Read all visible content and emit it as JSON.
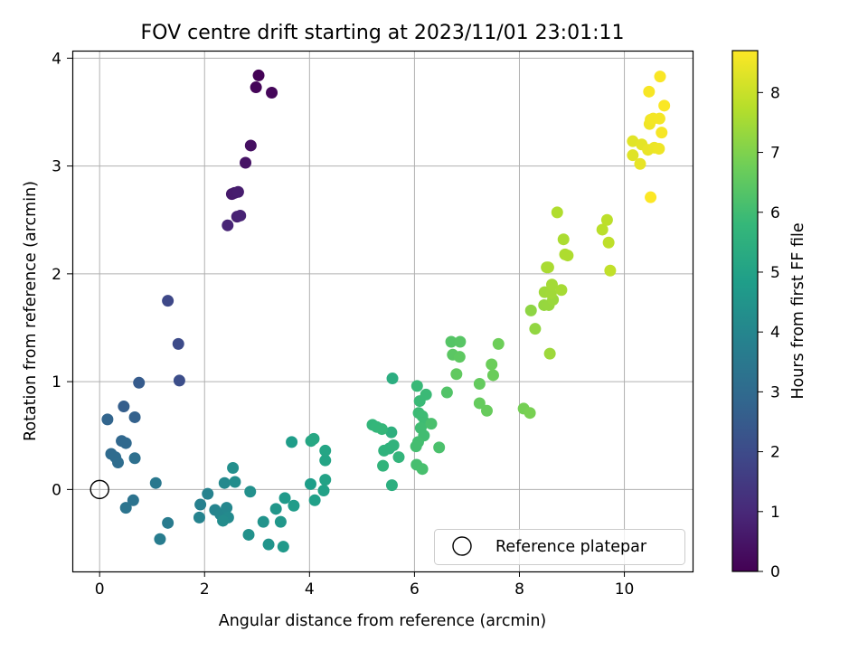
{
  "chart_data": {
    "type": "scatter",
    "title": "FOV centre drift starting at 2023/11/01 23:01:11",
    "xlabel": "Angular distance from reference (arcmin)",
    "ylabel": "Rotation from reference (arcmin)",
    "xlim": [
      -0.52,
      11.3
    ],
    "ylim": [
      -0.76,
      4.07
    ],
    "xticks": [
      "0",
      "2",
      "4",
      "6",
      "8",
      "10"
    ],
    "xtick_values": [
      0,
      2,
      4,
      6,
      8,
      10
    ],
    "yticks": [
      "0",
      "1",
      "2",
      "3",
      "4"
    ],
    "ytick_values": [
      0,
      1,
      2,
      3,
      4
    ],
    "grid": true,
    "legend": {
      "label": "Reference platepar",
      "placement": "lower-right"
    },
    "reference_point": {
      "x": 0,
      "y": 0
    },
    "colorbar": {
      "label": "Hours from first FF file",
      "range": [
        0,
        8.7
      ],
      "ticks": [
        "0",
        "1",
        "2",
        "3",
        "4",
        "5",
        "6",
        "7",
        "8"
      ],
      "tick_values": [
        0,
        1,
        2,
        3,
        4,
        5,
        6,
        7,
        8
      ],
      "colormap": "viridis",
      "stops": [
        "#440154",
        "#482878",
        "#3e4989",
        "#31688e",
        "#26828e",
        "#1f9e89",
        "#35b779",
        "#6ece58",
        "#b5de2b",
        "#fde725"
      ]
    },
    "points": [
      {
        "x": 3.03,
        "y": 3.84,
        "h": 0.05
      },
      {
        "x": 2.98,
        "y": 3.73,
        "h": 0.1
      },
      {
        "x": 3.28,
        "y": 3.68,
        "h": 0.15
      },
      {
        "x": 2.88,
        "y": 3.19,
        "h": 0.35
      },
      {
        "x": 2.78,
        "y": 3.03,
        "h": 0.45
      },
      {
        "x": 2.52,
        "y": 2.74,
        "h": 0.6
      },
      {
        "x": 2.57,
        "y": 2.75,
        "h": 0.65
      },
      {
        "x": 2.64,
        "y": 2.76,
        "h": 0.7
      },
      {
        "x": 2.62,
        "y": 2.53,
        "h": 0.8
      },
      {
        "x": 2.68,
        "y": 2.54,
        "h": 0.85
      },
      {
        "x": 2.44,
        "y": 2.45,
        "h": 0.9
      },
      {
        "x": 1.3,
        "y": 1.75,
        "h": 1.9
      },
      {
        "x": 1.5,
        "y": 1.35,
        "h": 2.0
      },
      {
        "x": 1.52,
        "y": 1.01,
        "h": 2.1
      },
      {
        "x": 0.75,
        "y": 0.99,
        "h": 2.5
      },
      {
        "x": 0.46,
        "y": 0.77,
        "h": 2.6
      },
      {
        "x": 0.67,
        "y": 0.67,
        "h": 2.7
      },
      {
        "x": 0.15,
        "y": 0.65,
        "h": 2.8
      },
      {
        "x": 0.42,
        "y": 0.45,
        "h": 2.9
      },
      {
        "x": 0.5,
        "y": 0.43,
        "h": 2.95
      },
      {
        "x": 0.22,
        "y": 0.33,
        "h": 3.0
      },
      {
        "x": 0.3,
        "y": 0.3,
        "h": 3.05
      },
      {
        "x": 0.35,
        "y": 0.25,
        "h": 3.1
      },
      {
        "x": 0.67,
        "y": 0.29,
        "h": 3.2
      },
      {
        "x": 0.64,
        "y": -0.1,
        "h": 3.3
      },
      {
        "x": 0.5,
        "y": -0.17,
        "h": 3.35
      },
      {
        "x": 1.07,
        "y": 0.06,
        "h": 3.5
      },
      {
        "x": 1.3,
        "y": -0.31,
        "h": 3.6
      },
      {
        "x": 1.15,
        "y": -0.46,
        "h": 3.65
      },
      {
        "x": 1.92,
        "y": -0.14,
        "h": 3.8
      },
      {
        "x": 2.06,
        "y": -0.04,
        "h": 3.85
      },
      {
        "x": 1.9,
        "y": -0.26,
        "h": 3.9
      },
      {
        "x": 2.2,
        "y": -0.19,
        "h": 3.95
      },
      {
        "x": 2.3,
        "y": -0.23,
        "h": 4.0
      },
      {
        "x": 2.42,
        "y": -0.17,
        "h": 4.05
      },
      {
        "x": 2.38,
        "y": 0.06,
        "h": 4.1
      },
      {
        "x": 2.45,
        "y": -0.26,
        "h": 4.15
      },
      {
        "x": 2.35,
        "y": -0.29,
        "h": 4.2
      },
      {
        "x": 2.58,
        "y": 0.07,
        "h": 4.25
      },
      {
        "x": 2.54,
        "y": 0.2,
        "h": 4.3
      },
      {
        "x": 2.87,
        "y": -0.02,
        "h": 4.35
      },
      {
        "x": 2.84,
        "y": -0.42,
        "h": 4.4
      },
      {
        "x": 3.12,
        "y": -0.3,
        "h": 4.45
      },
      {
        "x": 3.22,
        "y": -0.51,
        "h": 4.5
      },
      {
        "x": 3.36,
        "y": -0.18,
        "h": 4.55
      },
      {
        "x": 3.45,
        "y": -0.3,
        "h": 4.6
      },
      {
        "x": 3.5,
        "y": -0.53,
        "h": 4.65
      },
      {
        "x": 3.53,
        "y": -0.08,
        "h": 4.7
      },
      {
        "x": 3.7,
        "y": -0.15,
        "h": 4.75
      },
      {
        "x": 3.66,
        "y": 0.44,
        "h": 4.8
      },
      {
        "x": 4.02,
        "y": 0.05,
        "h": 4.85
      },
      {
        "x": 4.1,
        "y": -0.1,
        "h": 4.9
      },
      {
        "x": 4.27,
        "y": -0.01,
        "h": 4.95
      },
      {
        "x": 4.3,
        "y": 0.09,
        "h": 5.0
      },
      {
        "x": 4.3,
        "y": 0.27,
        "h": 5.05
      },
      {
        "x": 4.3,
        "y": 0.36,
        "h": 5.1
      },
      {
        "x": 4.03,
        "y": 0.45,
        "h": 5.15
      },
      {
        "x": 4.08,
        "y": 0.47,
        "h": 5.2
      },
      {
        "x": 5.58,
        "y": 1.03,
        "h": 5.4
      },
      {
        "x": 5.57,
        "y": 0.04,
        "h": 5.45
      },
      {
        "x": 5.56,
        "y": 0.53,
        "h": 5.5
      },
      {
        "x": 5.52,
        "y": 0.38,
        "h": 5.55
      },
      {
        "x": 5.42,
        "y": 0.36,
        "h": 5.6
      },
      {
        "x": 5.6,
        "y": 0.41,
        "h": 5.62
      },
      {
        "x": 5.4,
        "y": 0.22,
        "h": 5.65
      },
      {
        "x": 5.7,
        "y": 0.3,
        "h": 5.7
      },
      {
        "x": 5.2,
        "y": 0.6,
        "h": 5.72
      },
      {
        "x": 5.28,
        "y": 0.58,
        "h": 5.75
      },
      {
        "x": 5.38,
        "y": 0.56,
        "h": 5.78
      },
      {
        "x": 6.05,
        "y": 0.96,
        "h": 5.85
      },
      {
        "x": 6.1,
        "y": 0.82,
        "h": 5.88
      },
      {
        "x": 6.22,
        "y": 0.88,
        "h": 5.9
      },
      {
        "x": 6.08,
        "y": 0.71,
        "h": 5.92
      },
      {
        "x": 6.15,
        "y": 0.68,
        "h": 5.95
      },
      {
        "x": 6.2,
        "y": 0.62,
        "h": 5.97
      },
      {
        "x": 6.12,
        "y": 0.57,
        "h": 6.0
      },
      {
        "x": 6.18,
        "y": 0.5,
        "h": 6.02
      },
      {
        "x": 6.07,
        "y": 0.44,
        "h": 6.05
      },
      {
        "x": 6.03,
        "y": 0.4,
        "h": 6.07
      },
      {
        "x": 6.04,
        "y": 0.23,
        "h": 6.1
      },
      {
        "x": 6.15,
        "y": 0.19,
        "h": 6.12
      },
      {
        "x": 6.32,
        "y": 0.61,
        "h": 6.15
      },
      {
        "x": 6.47,
        "y": 0.39,
        "h": 6.18
      },
      {
        "x": 6.62,
        "y": 0.9,
        "h": 6.3
      },
      {
        "x": 6.7,
        "y": 1.37,
        "h": 6.35
      },
      {
        "x": 6.87,
        "y": 1.37,
        "h": 6.4
      },
      {
        "x": 6.73,
        "y": 1.25,
        "h": 6.45
      },
      {
        "x": 6.86,
        "y": 1.23,
        "h": 6.5
      },
      {
        "x": 6.8,
        "y": 1.07,
        "h": 6.55
      },
      {
        "x": 7.24,
        "y": 0.98,
        "h": 6.6
      },
      {
        "x": 7.24,
        "y": 0.8,
        "h": 6.62
      },
      {
        "x": 7.38,
        "y": 0.73,
        "h": 6.65
      },
      {
        "x": 7.5,
        "y": 1.06,
        "h": 6.7
      },
      {
        "x": 7.47,
        "y": 1.16,
        "h": 6.72
      },
      {
        "x": 7.6,
        "y": 1.35,
        "h": 6.75
      },
      {
        "x": 8.08,
        "y": 0.75,
        "h": 6.85
      },
      {
        "x": 8.2,
        "y": 0.71,
        "h": 6.9
      },
      {
        "x": 8.22,
        "y": 1.66,
        "h": 7.2
      },
      {
        "x": 8.3,
        "y": 1.49,
        "h": 7.25
      },
      {
        "x": 8.47,
        "y": 1.71,
        "h": 7.3
      },
      {
        "x": 8.56,
        "y": 1.71,
        "h": 7.33
      },
      {
        "x": 8.64,
        "y": 1.76,
        "h": 7.36
      },
      {
        "x": 8.58,
        "y": 1.26,
        "h": 7.4
      },
      {
        "x": 8.48,
        "y": 1.83,
        "h": 7.43
      },
      {
        "x": 8.6,
        "y": 1.82,
        "h": 7.46
      },
      {
        "x": 8.62,
        "y": 1.9,
        "h": 7.5
      },
      {
        "x": 8.8,
        "y": 1.85,
        "h": 7.53
      },
      {
        "x": 8.52,
        "y": 2.06,
        "h": 7.56
      },
      {
        "x": 8.55,
        "y": 2.06,
        "h": 7.58
      },
      {
        "x": 8.84,
        "y": 2.32,
        "h": 7.6
      },
      {
        "x": 8.87,
        "y": 2.18,
        "h": 7.62
      },
      {
        "x": 8.92,
        "y": 2.17,
        "h": 7.64
      },
      {
        "x": 8.72,
        "y": 2.57,
        "h": 7.66
      },
      {
        "x": 9.58,
        "y": 2.41,
        "h": 7.8
      },
      {
        "x": 9.67,
        "y": 2.5,
        "h": 7.83
      },
      {
        "x": 9.7,
        "y": 2.29,
        "h": 7.86
      },
      {
        "x": 9.73,
        "y": 2.03,
        "h": 7.9
      },
      {
        "x": 10.16,
        "y": 3.1,
        "h": 8.3
      },
      {
        "x": 10.16,
        "y": 3.23,
        "h": 8.33
      },
      {
        "x": 10.33,
        "y": 3.2,
        "h": 8.36
      },
      {
        "x": 10.3,
        "y": 3.02,
        "h": 8.4
      },
      {
        "x": 10.45,
        "y": 3.15,
        "h": 8.43
      },
      {
        "x": 10.57,
        "y": 3.17,
        "h": 8.46
      },
      {
        "x": 10.66,
        "y": 3.16,
        "h": 8.5
      },
      {
        "x": 10.48,
        "y": 3.39,
        "h": 8.52
      },
      {
        "x": 10.5,
        "y": 3.43,
        "h": 8.54
      },
      {
        "x": 10.55,
        "y": 3.44,
        "h": 8.56
      },
      {
        "x": 10.67,
        "y": 3.44,
        "h": 8.58
      },
      {
        "x": 10.71,
        "y": 3.31,
        "h": 8.6
      },
      {
        "x": 10.47,
        "y": 3.69,
        "h": 8.62
      },
      {
        "x": 10.68,
        "y": 3.83,
        "h": 8.64
      },
      {
        "x": 10.76,
        "y": 3.56,
        "h": 8.66
      },
      {
        "x": 10.5,
        "y": 2.71,
        "h": 8.68
      }
    ]
  }
}
